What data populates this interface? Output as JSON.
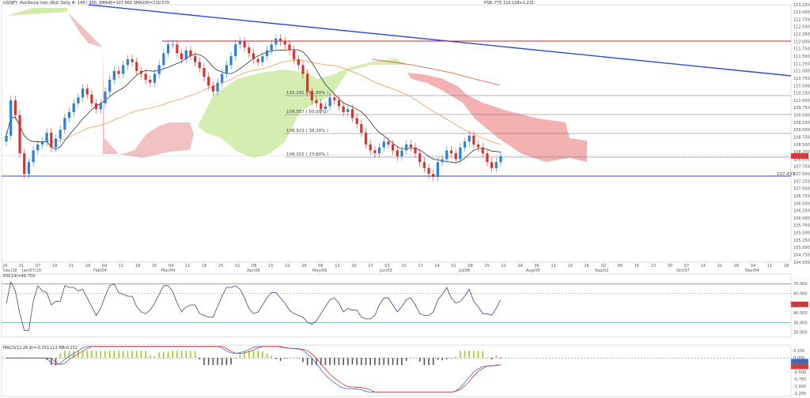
{
  "chart_title": "USDJPY -AskDevia Inen (Bid) Daily  #: 144 / 300,  SMA40=107.965   SMA200=110.570",
  "chart_title_right": "PSB: 775  110.108+1.231",
  "rsi_label": "RSI(14)=49.759",
  "macd_label": "MACD(12,26,9)=-0.151  LL3 MB-0.151",
  "fib_levels": [
    {
      "label": "110.291 ( 61.80% )",
      "value": 110.291
    },
    {
      "label": "109.587 ( 50.00% )",
      "value": 109.587
    },
    {
      "label": "108.923 ( 38.20% )",
      "value": 108.923
    },
    {
      "label": "108.102 ( 23.60% )",
      "value": 108.102
    }
  ],
  "current_price_label": "107.433",
  "price_box_label": "108.139",
  "rsi_value_label": "48.781",
  "macd_value_label": "-0.143",
  "macd_value_label2": "-0.151",
  "chart_data": {
    "type": "candlestick",
    "ylim": [
      104.5,
      113.25
    ],
    "price_ticks": [
      "113.250",
      "113.000",
      "112.750",
      "112.500",
      "112.250",
      "112.000",
      "111.750",
      "111.500",
      "111.250",
      "111.000",
      "110.750",
      "110.500",
      "110.250",
      "110.000",
      "109.750",
      "109.500",
      "109.250",
      "109.000",
      "108.750",
      "108.500",
      "108.250",
      "108.000",
      "107.750",
      "107.500",
      "107.250",
      "107.000",
      "106.750",
      "106.500",
      "106.250",
      "106.000",
      "105.750",
      "105.500",
      "105.250",
      "105.000",
      "104.750",
      "104.500"
    ],
    "x_ticks": [
      "24",
      "31",
      "07",
      "14",
      "21",
      "28",
      "04",
      "11",
      "18",
      "25",
      "04",
      "11",
      "18",
      "25",
      "01",
      "08",
      "15",
      "22",
      "29",
      "06",
      "13",
      "20",
      "27",
      "03",
      "10",
      "17",
      "24",
      "01",
      "08",
      "15",
      "22",
      "29",
      "05",
      "12",
      "19",
      "26",
      "02",
      "09",
      "16",
      "23",
      "30",
      "07",
      "14",
      "21",
      "28",
      "04",
      "11",
      "18"
    ],
    "x_month_labels": [
      "Dec/18",
      "Jan/07/19",
      "Feb/04",
      "Mar/04",
      "Apr/08",
      "May/06",
      "Jun/03",
      "Jul/08",
      "Aug/05",
      "Sep/02",
      "Oct/07",
      "Nov/04"
    ],
    "rsi_ticks": [
      "70.000",
      "60.000",
      "48.781",
      "40.000",
      "30.000",
      "20.000"
    ],
    "macd_ticks": [
      "0.250",
      "0.000",
      "-0.250",
      "-0.500",
      "-0.750",
      "-1.000",
      "-1.250"
    ],
    "closes": [
      108.8,
      110.0,
      109.5,
      108.2,
      107.5,
      107.9,
      108.3,
      108.5,
      108.6,
      108.9,
      108.4,
      108.7,
      109.0,
      109.4,
      109.6,
      109.9,
      110.1,
      110.4,
      110.2,
      109.9,
      109.7,
      109.9,
      110.3,
      110.7,
      111.0,
      110.9,
      111.2,
      111.4,
      111.3,
      111.0,
      110.9,
      110.7,
      110.6,
      110.9,
      111.2,
      111.6,
      111.9,
      111.9,
      111.6,
      111.4,
      111.7,
      111.5,
      111.3,
      111.1,
      110.8,
      110.5,
      110.3,
      110.6,
      110.9,
      111.2,
      111.5,
      111.9,
      112.0,
      111.8,
      111.6,
      111.4,
      111.3,
      111.5,
      111.7,
      111.9,
      112.1,
      112.0,
      111.9,
      111.7,
      111.4,
      111.2,
      110.9,
      110.3,
      110.0,
      109.9,
      109.7,
      109.8,
      110.1,
      110.0,
      109.8,
      109.6,
      109.7,
      109.4,
      109.2,
      108.9,
      108.5,
      108.3,
      108.2,
      108.4,
      108.6,
      108.5,
      108.3,
      108.1,
      108.3,
      108.5,
      108.4,
      108.2,
      107.9,
      107.7,
      107.5,
      107.4,
      107.9,
      108.0,
      108.3,
      108.2,
      108.0,
      108.4,
      108.6,
      108.8,
      108.5,
      108.4,
      108.2,
      107.9,
      107.7,
      107.9,
      108.1
    ]
  }
}
